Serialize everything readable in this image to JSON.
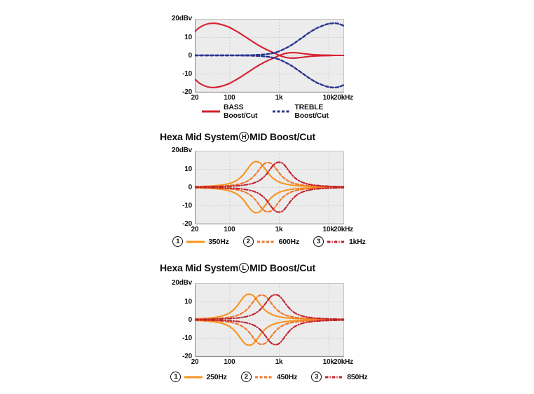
{
  "figure": {
    "background": "#ffffff"
  },
  "chart_data": [
    {
      "type": "line",
      "name": "bass-treble-boost-cut",
      "title": null,
      "x_axis": {
        "scale": "log",
        "range_hz": [
          20,
          20000
        ],
        "ticks": [
          {
            "hz": 20,
            "label": "20"
          },
          {
            "hz": 100,
            "label": "100"
          },
          {
            "hz": 1000,
            "label": "1k"
          },
          {
            "hz": 10000,
            "label": "10k"
          },
          {
            "hz": 20000,
            "label": "20kHz"
          }
        ],
        "grid_hz": [
          100,
          1000,
          10000
        ]
      },
      "y_axis": {
        "range_db": [
          -20,
          20
        ],
        "unit_label": "20dBv",
        "ticks": [
          "10",
          "0",
          "-10",
          "-20"
        ],
        "grid_db": [
          10,
          0,
          -10
        ]
      },
      "series": [
        {
          "name": "BASS Boost/Cut",
          "style": "solid",
          "color": "#D6202F",
          "mirror": true,
          "points_hz_db": [
            [
              20,
              13
            ],
            [
              25,
              15.3
            ],
            [
              32,
              16.8
            ],
            [
              40,
              17.5
            ],
            [
              50,
              17.6
            ],
            [
              63,
              17.2
            ],
            [
              80,
              16.4
            ],
            [
              100,
              15.4
            ],
            [
              130,
              13.7
            ],
            [
              170,
              11.8
            ],
            [
              220,
              9.8
            ],
            [
              300,
              7.4
            ],
            [
              400,
              5.3
            ],
            [
              550,
              3.3
            ],
            [
              700,
              2.0
            ],
            [
              850,
              1.0
            ],
            [
              1000,
              0.1
            ],
            [
              1200,
              -0.7
            ],
            [
              1500,
              -1.3
            ],
            [
              2000,
              -1.5
            ],
            [
              2700,
              -1.2
            ],
            [
              3500,
              -0.8
            ],
            [
              5000,
              -0.4
            ],
            [
              7000,
              -0.2
            ],
            [
              10000,
              -0.1
            ],
            [
              14000,
              0
            ],
            [
              20000,
              0
            ]
          ]
        },
        {
          "name": "TREBLE Boost/Cut",
          "style": "dashed",
          "color": "#2A3590",
          "mirror": true,
          "points_hz_db": [
            [
              20,
              0
            ],
            [
              50,
              0
            ],
            [
              100,
              0
            ],
            [
              200,
              0.1
            ],
            [
              300,
              0.2
            ],
            [
              400,
              0.35
            ],
            [
              500,
              0.55
            ],
            [
              650,
              0.9
            ],
            [
              800,
              1.4
            ],
            [
              1000,
              2.2
            ],
            [
              1300,
              3.6
            ],
            [
              1700,
              5.3
            ],
            [
              2200,
              7.3
            ],
            [
              3000,
              9.9
            ],
            [
              4000,
              12.3
            ],
            [
              5500,
              14.6
            ],
            [
              7000,
              15.9
            ],
            [
              9000,
              17.0
            ],
            [
              11000,
              17.5
            ],
            [
              14000,
              17.6
            ],
            [
              17000,
              17.1
            ],
            [
              20000,
              16.3
            ]
          ]
        }
      ],
      "legend": [
        {
          "number": null,
          "label": "BASS Boost/Cut",
          "color": "#D6202F",
          "style": "solid"
        },
        {
          "number": null,
          "label": "TREBLE Boost/Cut",
          "color": "#2A3590",
          "style": "dashed"
        }
      ]
    },
    {
      "type": "line",
      "name": "hexa-mid-system-h",
      "title": {
        "prefix": "Hexa Mid System",
        "circled": "H",
        "suffix": "MID Boost/Cut"
      },
      "x_axis": {
        "scale": "log",
        "range_hz": [
          20,
          20000
        ],
        "ticks": [
          {
            "hz": 20,
            "label": "20"
          },
          {
            "hz": 100,
            "label": "100"
          },
          {
            "hz": 1000,
            "label": "1k"
          },
          {
            "hz": 10000,
            "label": "10k"
          },
          {
            "hz": 20000,
            "label": "20kHz"
          }
        ],
        "grid_hz": [
          100,
          1000,
          10000
        ]
      },
      "y_axis": {
        "range_db": [
          -20,
          20
        ],
        "unit_label": "20dBv",
        "ticks": [
          "10",
          "0",
          "-10",
          "-20"
        ],
        "grid_db": [
          10,
          0,
          -10
        ]
      },
      "series": [
        {
          "name": "350Hz",
          "style": "solid",
          "color": "#F7941E",
          "mirror": true,
          "bell": {
            "center_hz": 350,
            "peak_db": 14,
            "log_width": 0.6
          }
        },
        {
          "name": "600Hz",
          "style": "dashed",
          "color": "#F0762A",
          "mirror": true,
          "bell": {
            "center_hz": 600,
            "peak_db": 13.5,
            "log_width": 0.6
          }
        },
        {
          "name": "1kHz",
          "style": "dash-dot",
          "color": "#C2212F",
          "mirror": true,
          "bell": {
            "center_hz": 1000,
            "peak_db": 13.7,
            "log_width": 0.6
          }
        }
      ],
      "legend": [
        {
          "number": "1",
          "label": "350Hz",
          "color": "#F7941E",
          "style": "solid"
        },
        {
          "number": "2",
          "label": "600Hz",
          "color": "#F0762A",
          "style": "dashed"
        },
        {
          "number": "3",
          "label": "1kHz",
          "color": "#C2212F",
          "style": "dash-dot"
        }
      ]
    },
    {
      "type": "line",
      "name": "hexa-mid-system-l",
      "title": {
        "prefix": "Hexa Mid System",
        "circled": "L",
        "suffix": "MID Boost/Cut"
      },
      "x_axis": {
        "scale": "log",
        "range_hz": [
          20,
          20000
        ],
        "ticks": [
          {
            "hz": 20,
            "label": "20"
          },
          {
            "hz": 100,
            "label": "100"
          },
          {
            "hz": 1000,
            "label": "1k"
          },
          {
            "hz": 10000,
            "label": "10k"
          },
          {
            "hz": 20000,
            "label": "20kHz"
          }
        ],
        "grid_hz": [
          100,
          1000,
          10000
        ]
      },
      "y_axis": {
        "range_db": [
          -20,
          20
        ],
        "unit_label": "20dBv",
        "ticks": [
          "10",
          "0",
          "-10",
          "-20"
        ],
        "grid_db": [
          10,
          0,
          -10
        ]
      },
      "series": [
        {
          "name": "250Hz",
          "style": "solid",
          "color": "#F7941E",
          "mirror": true,
          "bell": {
            "center_hz": 250,
            "peak_db": 14,
            "log_width": 0.6
          }
        },
        {
          "name": "450Hz",
          "style": "dashed",
          "color": "#F0762A",
          "mirror": true,
          "bell": {
            "center_hz": 450,
            "peak_db": 13.5,
            "log_width": 0.6
          }
        },
        {
          "name": "850Hz",
          "style": "dash-dot",
          "color": "#C2212F",
          "mirror": true,
          "bell": {
            "center_hz": 850,
            "peak_db": 13.7,
            "log_width": 0.6
          }
        }
      ],
      "legend": [
        {
          "number": "1",
          "label": "250Hz",
          "color": "#F7941E",
          "style": "solid"
        },
        {
          "number": "2",
          "label": "450Hz",
          "color": "#F0762A",
          "style": "dashed"
        },
        {
          "number": "3",
          "label": "850Hz",
          "color": "#C2212F",
          "style": "dash-dot"
        }
      ]
    }
  ],
  "plot_style": {
    "plot_bg": "#ececec",
    "plot_border": "#c4c4c4",
    "axis_line": "#8f8f8f",
    "grid_line": "#c9c9c9",
    "text_color": "#111111"
  }
}
